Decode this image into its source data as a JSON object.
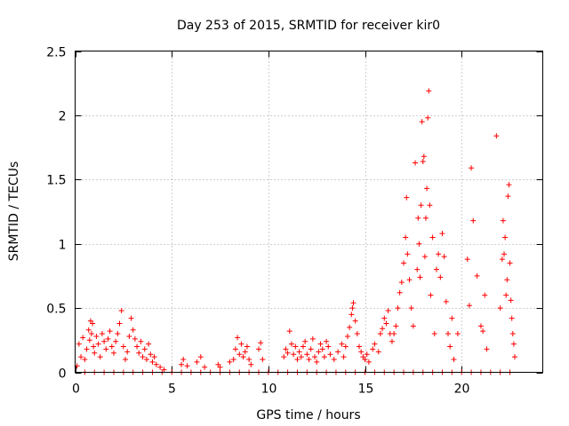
{
  "chart_data": {
    "type": "scatter",
    "title": "Day 253 of 2015, SRMTID for receiver kir0",
    "xlabel": "GPS time / hours",
    "ylabel": "SRMTID / TECUs",
    "xlim": [
      0,
      24.2
    ],
    "ylim": [
      0,
      2.5
    ],
    "x_ticks": [
      0,
      5,
      10,
      15,
      20
    ],
    "x_tick_labels": [
      "0",
      "5",
      "10",
      "15",
      "20"
    ],
    "y_ticks": [
      0,
      0.5,
      1,
      1.5,
      2,
      2.5
    ],
    "y_tick_labels": [
      "0",
      "0.5",
      "1",
      "1.5",
      "2",
      "2.5"
    ],
    "grid": true,
    "marker": "+",
    "series": [
      {
        "name": "SRMTID",
        "color": "#ff0000",
        "points": [
          [
            0.1,
            0.05
          ],
          [
            0.2,
            0.22
          ],
          [
            0.3,
            0.12
          ],
          [
            0.4,
            0.27
          ],
          [
            0.5,
            0.1
          ],
          [
            0.6,
            0.18
          ],
          [
            0.7,
            0.33
          ],
          [
            0.75,
            0.25
          ],
          [
            0.8,
            0.4
          ],
          [
            0.85,
            0.3
          ],
          [
            0.9,
            0.38
          ],
          [
            0.95,
            0.2
          ],
          [
            1.0,
            0.15
          ],
          [
            1.1,
            0.28
          ],
          [
            1.2,
            0.22
          ],
          [
            1.3,
            0.12
          ],
          [
            1.4,
            0.3
          ],
          [
            1.5,
            0.24
          ],
          [
            1.6,
            0.18
          ],
          [
            1.7,
            0.26
          ],
          [
            1.8,
            0.32
          ],
          [
            1.9,
            0.2
          ],
          [
            2.0,
            0.15
          ],
          [
            2.1,
            0.24
          ],
          [
            2.2,
            0.3
          ],
          [
            2.3,
            0.38
          ],
          [
            2.4,
            0.48
          ],
          [
            2.5,
            0.2
          ],
          [
            2.6,
            0.1
          ],
          [
            2.7,
            0.16
          ],
          [
            2.8,
            0.28
          ],
          [
            2.9,
            0.42
          ],
          [
            3.0,
            0.33
          ],
          [
            3.1,
            0.26
          ],
          [
            3.2,
            0.2
          ],
          [
            3.3,
            0.15
          ],
          [
            3.4,
            0.24
          ],
          [
            3.5,
            0.12
          ],
          [
            3.6,
            0.18
          ],
          [
            3.7,
            0.1
          ],
          [
            3.8,
            0.22
          ],
          [
            3.9,
            0.14
          ],
          [
            4.0,
            0.08
          ],
          [
            4.1,
            0.12
          ],
          [
            4.2,
            0.06
          ],
          [
            4.4,
            0.04
          ],
          [
            4.6,
            0.02
          ],
          [
            5.5,
            0.06
          ],
          [
            5.6,
            0.1
          ],
          [
            5.8,
            0.05
          ],
          [
            6.3,
            0.08
          ],
          [
            6.5,
            0.12
          ],
          [
            6.7,
            0.04
          ],
          [
            7.4,
            0.06
          ],
          [
            7.5,
            0.04
          ],
          [
            8.0,
            0.08
          ],
          [
            8.2,
            0.1
          ],
          [
            8.3,
            0.18
          ],
          [
            8.4,
            0.27
          ],
          [
            8.5,
            0.14
          ],
          [
            8.6,
            0.22
          ],
          [
            8.7,
            0.12
          ],
          [
            8.8,
            0.16
          ],
          [
            8.9,
            0.2
          ],
          [
            9.0,
            0.1
          ],
          [
            9.1,
            0.06
          ],
          [
            9.5,
            0.18
          ],
          [
            9.6,
            0.23
          ],
          [
            9.7,
            0.1
          ],
          [
            10.8,
            0.12
          ],
          [
            10.9,
            0.18
          ],
          [
            11.0,
            0.15
          ],
          [
            11.1,
            0.32
          ],
          [
            11.2,
            0.22
          ],
          [
            11.3,
            0.14
          ],
          [
            11.4,
            0.2
          ],
          [
            11.5,
            0.1
          ],
          [
            11.6,
            0.16
          ],
          [
            11.7,
            0.12
          ],
          [
            11.8,
            0.2
          ],
          [
            11.9,
            0.24
          ],
          [
            12.0,
            0.14
          ],
          [
            12.1,
            0.1
          ],
          [
            12.2,
            0.18
          ],
          [
            12.3,
            0.26
          ],
          [
            12.4,
            0.12
          ],
          [
            12.5,
            0.08
          ],
          [
            12.6,
            0.16
          ],
          [
            12.7,
            0.22
          ],
          [
            12.8,
            0.18
          ],
          [
            12.9,
            0.12
          ],
          [
            13.0,
            0.24
          ],
          [
            13.1,
            0.2
          ],
          [
            13.2,
            0.14
          ],
          [
            13.4,
            0.1
          ],
          [
            13.6,
            0.16
          ],
          [
            13.8,
            0.22
          ],
          [
            13.9,
            0.12
          ],
          [
            14.0,
            0.2
          ],
          [
            14.1,
            0.28
          ],
          [
            14.2,
            0.35
          ],
          [
            14.3,
            0.45
          ],
          [
            14.35,
            0.5
          ],
          [
            14.4,
            0.54
          ],
          [
            14.5,
            0.4
          ],
          [
            14.6,
            0.3
          ],
          [
            14.7,
            0.2
          ],
          [
            14.8,
            0.16
          ],
          [
            14.9,
            0.12
          ],
          [
            15.0,
            0.1
          ],
          [
            15.1,
            0.14
          ],
          [
            15.2,
            0.08
          ],
          [
            15.4,
            0.18
          ],
          [
            15.5,
            0.22
          ],
          [
            15.7,
            0.16
          ],
          [
            15.8,
            0.3
          ],
          [
            15.9,
            0.34
          ],
          [
            16.0,
            0.42
          ],
          [
            16.1,
            0.38
          ],
          [
            16.2,
            0.48
          ],
          [
            16.3,
            0.3
          ],
          [
            16.4,
            0.24
          ],
          [
            16.5,
            0.3
          ],
          [
            16.6,
            0.36
          ],
          [
            16.7,
            0.5
          ],
          [
            16.8,
            0.62
          ],
          [
            16.9,
            0.7
          ],
          [
            17.0,
            0.85
          ],
          [
            17.1,
            1.05
          ],
          [
            17.15,
            1.36
          ],
          [
            17.2,
            0.92
          ],
          [
            17.3,
            0.72
          ],
          [
            17.4,
            0.5
          ],
          [
            17.5,
            0.36
          ],
          [
            17.6,
            1.63
          ],
          [
            17.7,
            0.8
          ],
          [
            17.75,
            1.2
          ],
          [
            17.8,
            1.0
          ],
          [
            17.85,
            0.74
          ],
          [
            17.9,
            1.3
          ],
          [
            17.95,
            1.95
          ],
          [
            18.0,
            1.64
          ],
          [
            18.05,
            1.68
          ],
          [
            18.1,
            0.9
          ],
          [
            18.15,
            1.2
          ],
          [
            18.2,
            1.43
          ],
          [
            18.25,
            1.98
          ],
          [
            18.3,
            2.19
          ],
          [
            18.35,
            1.3
          ],
          [
            18.4,
            0.6
          ],
          [
            18.5,
            1.05
          ],
          [
            18.6,
            0.3
          ],
          [
            18.7,
            0.8
          ],
          [
            18.8,
            0.92
          ],
          [
            18.9,
            0.74
          ],
          [
            19.0,
            1.08
          ],
          [
            19.1,
            0.9
          ],
          [
            19.2,
            0.55
          ],
          [
            19.3,
            0.3
          ],
          [
            19.4,
            0.2
          ],
          [
            19.5,
            0.42
          ],
          [
            19.6,
            0.1
          ],
          [
            19.8,
            0.3
          ],
          [
            20.3,
            0.88
          ],
          [
            20.4,
            0.52
          ],
          [
            20.5,
            1.59
          ],
          [
            20.6,
            1.18
          ],
          [
            20.8,
            0.75
          ],
          [
            21.0,
            0.36
          ],
          [
            21.1,
            0.32
          ],
          [
            21.2,
            0.6
          ],
          [
            21.3,
            0.18
          ],
          [
            21.8,
            1.84
          ],
          [
            22.0,
            0.5
          ],
          [
            22.1,
            0.88
          ],
          [
            22.15,
            1.18
          ],
          [
            22.2,
            0.92
          ],
          [
            22.25,
            1.05
          ],
          [
            22.3,
            0.6
          ],
          [
            22.35,
            0.72
          ],
          [
            22.4,
            1.37
          ],
          [
            22.45,
            1.46
          ],
          [
            22.5,
            0.85
          ],
          [
            22.55,
            0.56
          ],
          [
            22.6,
            0.42
          ],
          [
            22.65,
            0.3
          ],
          [
            22.7,
            0.22
          ],
          [
            22.75,
            0.12
          ],
          [
            0.5,
            0.0
          ],
          [
            1.0,
            0.0
          ],
          [
            1.5,
            0.0
          ],
          [
            2.0,
            0.0
          ],
          [
            2.5,
            0.0
          ],
          [
            3.0,
            0.0
          ],
          [
            3.5,
            0.0
          ],
          [
            4.0,
            0.0
          ],
          [
            4.5,
            0.0
          ],
          [
            5.0,
            0.0
          ],
          [
            5.5,
            0.0
          ],
          [
            6.0,
            0.0
          ],
          [
            6.5,
            0.0
          ],
          [
            7.0,
            0.0
          ],
          [
            7.5,
            0.0
          ],
          [
            8.0,
            0.0
          ],
          [
            8.5,
            0.0
          ],
          [
            9.0,
            0.0
          ],
          [
            9.5,
            0.0
          ],
          [
            10.0,
            0.0
          ],
          [
            10.5,
            0.0
          ],
          [
            11.0,
            0.0
          ],
          [
            11.5,
            0.0
          ],
          [
            12.0,
            0.0
          ],
          [
            12.5,
            0.0
          ],
          [
            13.0,
            0.0
          ],
          [
            13.5,
            0.0
          ],
          [
            14.0,
            0.0
          ],
          [
            14.5,
            0.0
          ],
          [
            15.0,
            0.0
          ],
          [
            15.5,
            0.0
          ],
          [
            16.0,
            0.0
          ],
          [
            16.5,
            0.0
          ],
          [
            17.0,
            0.0
          ],
          [
            17.5,
            0.0
          ],
          [
            18.0,
            0.0
          ],
          [
            18.5,
            0.0
          ],
          [
            19.0,
            0.0
          ],
          [
            19.5,
            0.0
          ],
          [
            20.0,
            0.0
          ],
          [
            20.5,
            0.0
          ],
          [
            21.0,
            0.0
          ],
          [
            21.5,
            0.0
          ],
          [
            22.0,
            0.0
          ],
          [
            22.5,
            0.0
          ]
        ]
      }
    ]
  }
}
